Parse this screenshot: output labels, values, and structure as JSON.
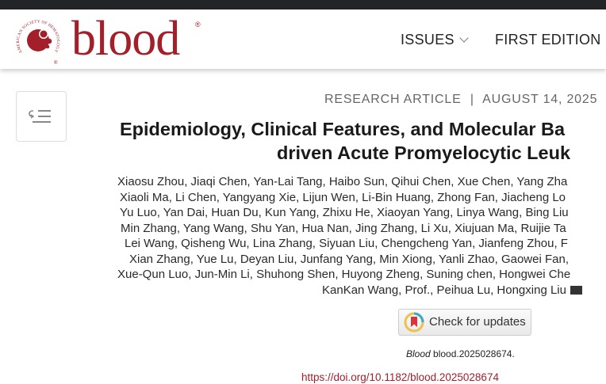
{
  "brand": {
    "name": "blood",
    "society": "AMERICAN SOCIETY OF HEMATOLOGY",
    "registered": "®",
    "color": "#a3202b"
  },
  "nav": {
    "items": [
      {
        "label": "ISSUES",
        "has_dropdown": true
      },
      {
        "label": "FIRST EDITION"
      }
    ]
  },
  "toc_button": {
    "icon": "toc-list-icon"
  },
  "article": {
    "type": "RESEARCH ARTICLE",
    "separator": "|",
    "date": "AUGUST 14, 2025",
    "title_lines": [
      "Epidemiology, Clinical Features, and Molecular Ba",
      "driven Acute Promyelocytic Leuk"
    ],
    "author_lines": [
      "Xiaosu Zhou, Jiaqi Chen, Yan-Lai Tang, Haibo Sun, Qihui Chen, Xue Chen, Yang Zha",
      "Xiaoli Ma, Li Chen, Yangyang Xie, Lijun Wen, Li-Bin Huang, Zhong Fan, Jiacheng Lo",
      "Yu Luo, Yan Dai, Huan Du, Kun Yang, Zhixu He, Xiaoyan Yang, Linya Wang, Bing Liu",
      "Min Zhang, Yang Wang, Shu Yan, Hua Nan, Jing Zhang, Li Xu, Xiujuan Ma, Ruijie Ta",
      "Lei Wang, Qisheng Wu, Lina Zhang, Siyuan Liu, Chengcheng Yan, Jianfeng Zhou, F",
      "Xian Zhang, Yue Lu, Deyan Liu, Junfang Yang, Min Xiong, Yanli Zhao, Gaowei Fan,",
      "Xue-Qun Luo, Jun-Min Li, Shuhong Shen, Huyong Zheng, Suning chen, Hongwei Che",
      "KanKan Wang, Prof., Peihua Lu, Hongxing Liu"
    ],
    "check_updates_label": "Check for updates",
    "citation_journal": "Blood",
    "citation_id": "blood.2025028674.",
    "doi": "https://doi.org/10.1182/blood.2025028674"
  }
}
